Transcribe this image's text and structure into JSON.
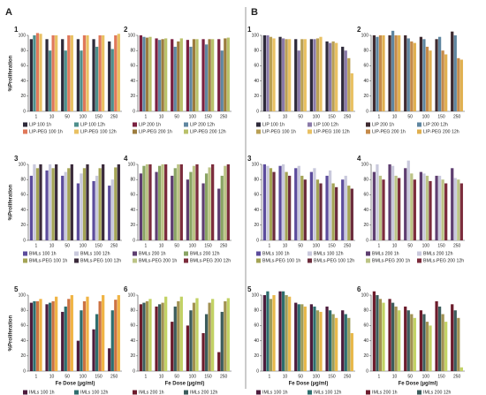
{
  "sections": [
    {
      "label": "A"
    },
    {
      "label": "B"
    }
  ],
  "chart_data": [
    {
      "type": "bar",
      "label": "1",
      "ylabel": "%Proliferation",
      "categories": [
        "1",
        "10",
        "50",
        "100",
        "150",
        "250"
      ],
      "ylim": [
        0,
        100
      ],
      "yticks": [
        0,
        20,
        40,
        60,
        80,
        100
      ],
      "series": [
        {
          "name": "LIP 100 1h",
          "color": "#2e2a3a",
          "values": [
            95,
            95,
            95,
            95,
            95,
            92
          ]
        },
        {
          "name": "LIP 100 12h",
          "color": "#4e8f8c",
          "values": [
            100,
            80,
            80,
            80,
            85,
            82
          ]
        },
        {
          "name": "LIP-PEG 100 1h",
          "color": "#e0785a",
          "values": [
            103,
            100,
            100,
            100,
            100,
            100
          ]
        },
        {
          "name": "LIP-PEG 100 12h",
          "color": "#e9c163",
          "values": [
            102,
            100,
            100,
            100,
            100,
            102
          ]
        }
      ]
    },
    {
      "type": "bar",
      "label": "2",
      "categories": [
        "1",
        "10",
        "50",
        "100",
        "150",
        "250"
      ],
      "ylim": [
        0,
        100
      ],
      "yticks": [
        0,
        20,
        40,
        60,
        80,
        100
      ],
      "series": [
        {
          "name": "LIP 200 1h",
          "color": "#7a2040",
          "values": [
            100,
            96,
            95,
            94,
            95,
            95
          ]
        },
        {
          "name": "LIP 200 12h",
          "color": "#5f86a0",
          "values": [
            98,
            94,
            85,
            85,
            88,
            80
          ]
        },
        {
          "name": "LIP-PEG 200 1h",
          "color": "#9c7c3e",
          "values": [
            97,
            95,
            92,
            95,
            95,
            96
          ]
        },
        {
          "name": "LIP-PEG 200 12h",
          "color": "#b9c16a",
          "values": [
            98,
            96,
            96,
            95,
            95,
            97
          ]
        }
      ]
    },
    {
      "type": "bar",
      "label": "3",
      "ylabel": "%Proliferation",
      "categories": [
        "1",
        "10",
        "50",
        "100",
        "150",
        "250"
      ],
      "ylim": [
        0,
        100
      ],
      "yticks": [
        0,
        20,
        40,
        60,
        80,
        100
      ],
      "series": [
        {
          "name": "BMLs 100 1h",
          "color": "#5c4c9c",
          "values": [
            85,
            92,
            85,
            75,
            78,
            72
          ]
        },
        {
          "name": "BMLs 100 12h",
          "color": "#c9c9dc",
          "values": [
            100,
            100,
            90,
            88,
            85,
            80
          ]
        },
        {
          "name": "BMLs-PEG 100 1h",
          "color": "#a4a455",
          "values": [
            95,
            95,
            95,
            95,
            95,
            96
          ]
        },
        {
          "name": "BMLs-PEG 100 12h",
          "color": "#3b2b3b",
          "values": [
            100,
            100,
            100,
            100,
            100,
            100
          ]
        }
      ]
    },
    {
      "type": "bar",
      "label": "4",
      "categories": [
        "1",
        "10",
        "50",
        "100",
        "150",
        "250"
      ],
      "ylim": [
        0,
        100
      ],
      "yticks": [
        0,
        20,
        40,
        60,
        80,
        100
      ],
      "series": [
        {
          "name": "BMLs 200 1h",
          "color": "#5e3e70",
          "values": [
            88,
            90,
            85,
            80,
            75,
            68
          ]
        },
        {
          "name": "BMLs 200 12h",
          "color": "#8aa464",
          "values": [
            98,
            98,
            95,
            90,
            88,
            85
          ]
        },
        {
          "name": "BMLs-PEG 200 1h",
          "color": "#bcc486",
          "values": [
            100,
            100,
            100,
            98,
            96,
            98
          ]
        },
        {
          "name": "BMLs-PEG 200 12h",
          "color": "#7c2c3c",
          "values": [
            100,
            100,
            100,
            100,
            100,
            100
          ]
        }
      ]
    },
    {
      "type": "bar",
      "label": "5",
      "ylabel": "%Proliferation",
      "xlabel": "Fe Dose (µg/ml)",
      "categories": [
        "1",
        "10",
        "50",
        "100",
        "150",
        "250"
      ],
      "ylim": [
        0,
        100
      ],
      "yticks": [
        0,
        20,
        40,
        60,
        80,
        100
      ],
      "series": [
        {
          "name": "IMLs 100 1h",
          "color": "#4c1c3c",
          "values": [
            90,
            88,
            78,
            40,
            55,
            30
          ]
        },
        {
          "name": "IMLs 100 12h",
          "color": "#2e6e6e",
          "values": [
            92,
            90,
            85,
            80,
            75,
            80
          ]
        },
        {
          "name": "IMLs-PEG 100 1h",
          "color": "#cc7242",
          "values": [
            92,
            92,
            95,
            92,
            92,
            94
          ]
        },
        {
          "name": "IMLs-PEG 100 12h",
          "color": "#f0b445",
          "values": [
            95,
            98,
            100,
            98,
            100,
            100
          ]
        }
      ]
    },
    {
      "type": "bar",
      "label": "6",
      "xlabel": "Fe Dose (µg/ml)",
      "categories": [
        "1",
        "10",
        "50",
        "100",
        "150",
        "250"
      ],
      "ylim": [
        0,
        100
      ],
      "yticks": [
        0,
        20,
        40,
        60,
        80,
        100
      ],
      "series": [
        {
          "name": "IMLs 200 1h",
          "color": "#6c1c2c",
          "values": [
            88,
            85,
            65,
            60,
            50,
            25
          ]
        },
        {
          "name": "IMLs 200 12h",
          "color": "#3c5c5c",
          "values": [
            90,
            88,
            85,
            80,
            75,
            78
          ]
        },
        {
          "name": "IMLs-PEG 200 1h",
          "color": "#a29252",
          "values": [
            92,
            90,
            92,
            90,
            90,
            92
          ]
        },
        {
          "name": "IMLs-PEG 200 12h",
          "color": "#c2d264",
          "values": [
            95,
            98,
            98,
            96,
            95,
            96
          ]
        }
      ]
    },
    {
      "type": "bar",
      "label": "1",
      "categories": [
        "1",
        "10",
        "50",
        "100",
        "150",
        "250"
      ],
      "ylim": [
        0,
        100
      ],
      "yticks": [
        0,
        20,
        40,
        60,
        80,
        100
      ],
      "series": [
        {
          "name": "LIP 100 1h",
          "color": "#2e2a3a",
          "values": [
            100,
            98,
            95,
            95,
            92,
            85
          ]
        },
        {
          "name": "LIP 100 12h",
          "color": "#8a7aa8",
          "values": [
            100,
            96,
            80,
            95,
            90,
            80
          ]
        },
        {
          "name": "LIP-PEG 100 1h",
          "color": "#b9a055",
          "values": [
            98,
            95,
            95,
            96,
            92,
            70
          ]
        },
        {
          "name": "LIP-PEG 100 12h",
          "color": "#e9c163",
          "values": [
            96,
            95,
            95,
            98,
            90,
            50
          ]
        }
      ]
    },
    {
      "type": "bar",
      "label": "2",
      "categories": [
        "1",
        "10",
        "50",
        "100",
        "150",
        "250"
      ],
      "ylim": [
        0,
        100
      ],
      "yticks": [
        0,
        20,
        40,
        60,
        80,
        100
      ],
      "series": [
        {
          "name": "LIP 200 1h",
          "color": "#3e2a30",
          "values": [
            100,
            100,
            100,
            98,
            95,
            105
          ]
        },
        {
          "name": "LIP 200 12h",
          "color": "#5f86a0",
          "values": [
            98,
            106,
            96,
            95,
            98,
            100
          ]
        },
        {
          "name": "LIP-PEG 200 1h",
          "color": "#c58a4a",
          "values": [
            100,
            100,
            92,
            85,
            80,
            70
          ]
        },
        {
          "name": "LIP-PEG 200 12h",
          "color": "#e0b050",
          "values": [
            100,
            100,
            90,
            80,
            75,
            68
          ]
        }
      ]
    },
    {
      "type": "bar",
      "label": "3",
      "categories": [
        "1",
        "10",
        "50",
        "100",
        "150",
        "250"
      ],
      "ylim": [
        0,
        100
      ],
      "yticks": [
        0,
        20,
        40,
        60,
        80,
        100
      ],
      "series": [
        {
          "name": "BMLs 100 1h",
          "color": "#5c4c9c",
          "values": [
            100,
            98,
            95,
            90,
            85,
            80
          ]
        },
        {
          "name": "BMLs 100 12h",
          "color": "#c9c9dc",
          "values": [
            98,
            100,
            98,
            95,
            92,
            85
          ]
        },
        {
          "name": "BMLs-PEG 100 1h",
          "color": "#a4a455",
          "values": [
            95,
            90,
            85,
            80,
            75,
            72
          ]
        },
        {
          "name": "BMLs-PEG 100 12h",
          "color": "#6c2c3c",
          "values": [
            90,
            85,
            80,
            75,
            70,
            68
          ]
        }
      ]
    },
    {
      "type": "bar",
      "label": "4",
      "categories": [
        "1",
        "10",
        "50",
        "100",
        "150",
        "250"
      ],
      "ylim": [
        0,
        100
      ],
      "yticks": [
        0,
        20,
        40,
        60,
        80,
        100
      ],
      "series": [
        {
          "name": "BMLs 200 1h",
          "color": "#5e3e70",
          "values": [
            90,
            100,
            95,
            90,
            85,
            95
          ]
        },
        {
          "name": "BMLs 200 12h",
          "color": "#c9c9dc",
          "values": [
            100,
            98,
            105,
            88,
            85,
            82
          ]
        },
        {
          "name": "BMLs-PEG 200 1h",
          "color": "#bcc486",
          "values": [
            85,
            85,
            88,
            85,
            80,
            80
          ]
        },
        {
          "name": "BMLs-PEG 200 12h",
          "color": "#7c2c3c",
          "values": [
            80,
            82,
            80,
            78,
            75,
            75
          ]
        }
      ]
    },
    {
      "type": "bar",
      "label": "5",
      "xlabel": "Fe Dose (µg/ml)",
      "categories": [
        "1",
        "10",
        "50",
        "100",
        "150",
        "250"
      ],
      "ylim": [
        0,
        100
      ],
      "yticks": [
        0,
        20,
        40,
        60,
        80,
        100
      ],
      "series": [
        {
          "name": "IMLs 100 1h",
          "color": "#4c1c3c",
          "values": [
            100,
            105,
            90,
            88,
            85,
            80
          ]
        },
        {
          "name": "IMLs 100 12h",
          "color": "#2e6e6e",
          "values": [
            105,
            105,
            88,
            85,
            80,
            75
          ]
        },
        {
          "name": "IMLs-PEG 100 1h",
          "color": "#9c9c5c",
          "values": [
            95,
            100,
            88,
            80,
            75,
            70
          ]
        },
        {
          "name": "IMLs-PEG 100 12h",
          "color": "#e8b84a",
          "values": [
            100,
            98,
            85,
            78,
            70,
            50
          ]
        }
      ]
    },
    {
      "type": "bar",
      "label": "6",
      "xlabel": "Fe Dose (µg/ml)",
      "categories": [
        "1",
        "10",
        "50",
        "100",
        "150",
        "250"
      ],
      "ylim": [
        0,
        100
      ],
      "yticks": [
        0,
        20,
        40,
        60,
        80,
        100
      ],
      "series": [
        {
          "name": "IMLs 200 1h",
          "color": "#6c1c2c",
          "values": [
            105,
            95,
            85,
            80,
            92,
            88
          ]
        },
        {
          "name": "IMLs 200 12h",
          "color": "#3c5c5c",
          "values": [
            100,
            90,
            80,
            75,
            85,
            80
          ]
        },
        {
          "name": "IMLs-PEG 200 1h",
          "color": "#a29252",
          "values": [
            95,
            85,
            75,
            65,
            75,
            70
          ]
        },
        {
          "name": "IMLs-PEG 200 12h",
          "color": "#c2d264",
          "values": [
            90,
            80,
            70,
            60,
            65,
            5
          ]
        }
      ]
    }
  ]
}
